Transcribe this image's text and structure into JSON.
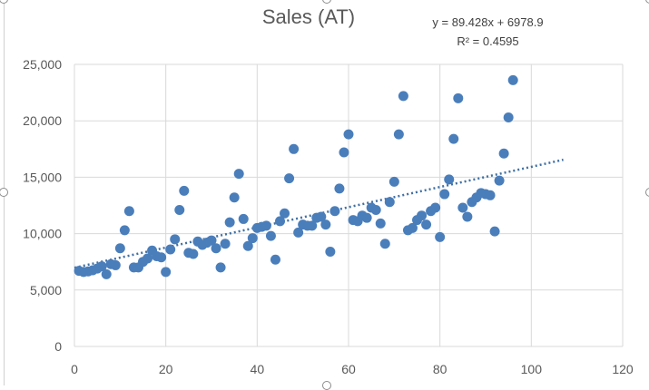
{
  "chart_data": {
    "type": "scatter",
    "title": "Sales (AT)",
    "xlabel": "",
    "ylabel": "",
    "xlim": [
      0,
      120
    ],
    "ylim": [
      0,
      25000
    ],
    "xticks": [
      "0",
      "20",
      "40",
      "60",
      "80",
      "100",
      "120"
    ],
    "yticks": [
      "0",
      "5,000",
      "10,000",
      "15,000",
      "20,000",
      "25,000"
    ],
    "grid": true,
    "legend": "none",
    "colors": {
      "points": "#4a7ebb",
      "trendline": "#3f6fa3",
      "grid": "#d9d9d9"
    },
    "trendline": {
      "equation": "y = 89.428x + 6978.9",
      "r_squared": "R² = 0.4595",
      "slope": 89.428,
      "intercept": 6978.9,
      "x_range": [
        0,
        107
      ]
    },
    "points": [
      [
        1,
        6700
      ],
      [
        2,
        6600
      ],
      [
        3,
        6650
      ],
      [
        4,
        6750
      ],
      [
        5,
        6900
      ],
      [
        6,
        7100
      ],
      [
        7,
        6400
      ],
      [
        8,
        7300
      ],
      [
        9,
        7200
      ],
      [
        10,
        8700
      ],
      [
        11,
        10300
      ],
      [
        12,
        12000
      ],
      [
        13,
        7000
      ],
      [
        14,
        7000
      ],
      [
        15,
        7500
      ],
      [
        16,
        7800
      ],
      [
        17,
        8500
      ],
      [
        18,
        8000
      ],
      [
        19,
        7900
      ],
      [
        20,
        6600
      ],
      [
        21,
        8600
      ],
      [
        22,
        9500
      ],
      [
        23,
        12100
      ],
      [
        24,
        13800
      ],
      [
        25,
        8300
      ],
      [
        26,
        8200
      ],
      [
        27,
        9300
      ],
      [
        28,
        9000
      ],
      [
        29,
        9200
      ],
      [
        30,
        9400
      ],
      [
        31,
        8700
      ],
      [
        32,
        7000
      ],
      [
        33,
        9100
      ],
      [
        34,
        11000
      ],
      [
        35,
        13200
      ],
      [
        36,
        15300
      ],
      [
        37,
        11300
      ],
      [
        38,
        8900
      ],
      [
        39,
        9600
      ],
      [
        40,
        10500
      ],
      [
        41,
        10600
      ],
      [
        42,
        10700
      ],
      [
        43,
        9800
      ],
      [
        44,
        7700
      ],
      [
        45,
        11100
      ],
      [
        46,
        11800
      ],
      [
        47,
        14900
      ],
      [
        48,
        17500
      ],
      [
        49,
        10100
      ],
      [
        50,
        10800
      ],
      [
        51,
        10700
      ],
      [
        52,
        10700
      ],
      [
        53,
        11400
      ],
      [
        54,
        11500
      ],
      [
        55,
        10800
      ],
      [
        56,
        8400
      ],
      [
        57,
        12000
      ],
      [
        58,
        14000
      ],
      [
        59,
        17200
      ],
      [
        60,
        18800
      ],
      [
        61,
        11200
      ],
      [
        62,
        11100
      ],
      [
        63,
        11600
      ],
      [
        64,
        11400
      ],
      [
        65,
        12300
      ],
      [
        66,
        12100
      ],
      [
        67,
        10900
      ],
      [
        68,
        9100
      ],
      [
        69,
        12800
      ],
      [
        70,
        14600
      ],
      [
        71,
        18800
      ],
      [
        72,
        22200
      ],
      [
        73,
        10300
      ],
      [
        74,
        10500
      ],
      [
        75,
        11200
      ],
      [
        76,
        11600
      ],
      [
        77,
        10800
      ],
      [
        78,
        12000
      ],
      [
        79,
        12300
      ],
      [
        80,
        9700
      ],
      [
        81,
        13500
      ],
      [
        82,
        14800
      ],
      [
        83,
        18400
      ],
      [
        84,
        22000
      ],
      [
        85,
        12300
      ],
      [
        86,
        11500
      ],
      [
        87,
        12800
      ],
      [
        88,
        13200
      ],
      [
        89,
        13600
      ],
      [
        90,
        13500
      ],
      [
        91,
        13400
      ],
      [
        92,
        10200
      ],
      [
        93,
        14700
      ],
      [
        94,
        17100
      ],
      [
        95,
        20300
      ],
      [
        96,
        23600
      ]
    ]
  }
}
